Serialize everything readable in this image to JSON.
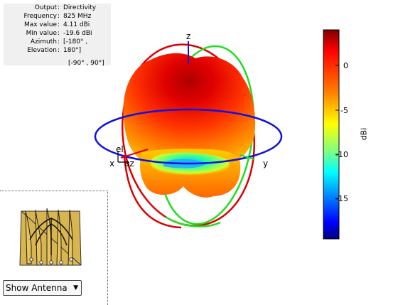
{
  "info": {
    "rows": [
      {
        "label": "Output",
        "value": "Directivity"
      },
      {
        "label": "Frequency",
        "value": "825 MHz"
      },
      {
        "label": "Max value",
        "value": "4.11 dBi"
      },
      {
        "label": "Min value",
        "value": "-19.6 dBi"
      },
      {
        "label": "Azimuth",
        "value": "[-180° ,"
      },
      {
        "label": "Elevation",
        "value": "180°]"
      }
    ],
    "extra": "[-90° , 90°]"
  },
  "axes": {
    "z": "z",
    "x": "x",
    "y": "y",
    "el": "el",
    "az": "az"
  },
  "colorbar": {
    "unit": "dBi",
    "ticks": [
      "0",
      "-5",
      "-10",
      "-15"
    ],
    "colors": [
      "#800000",
      "#ff0000",
      "#ff8000",
      "#ffff00",
      "#80ff80",
      "#00ffff",
      "#0080ff",
      "#0000ff",
      "#000080"
    ]
  },
  "antenna_select": {
    "value": "Show Antenna"
  }
}
